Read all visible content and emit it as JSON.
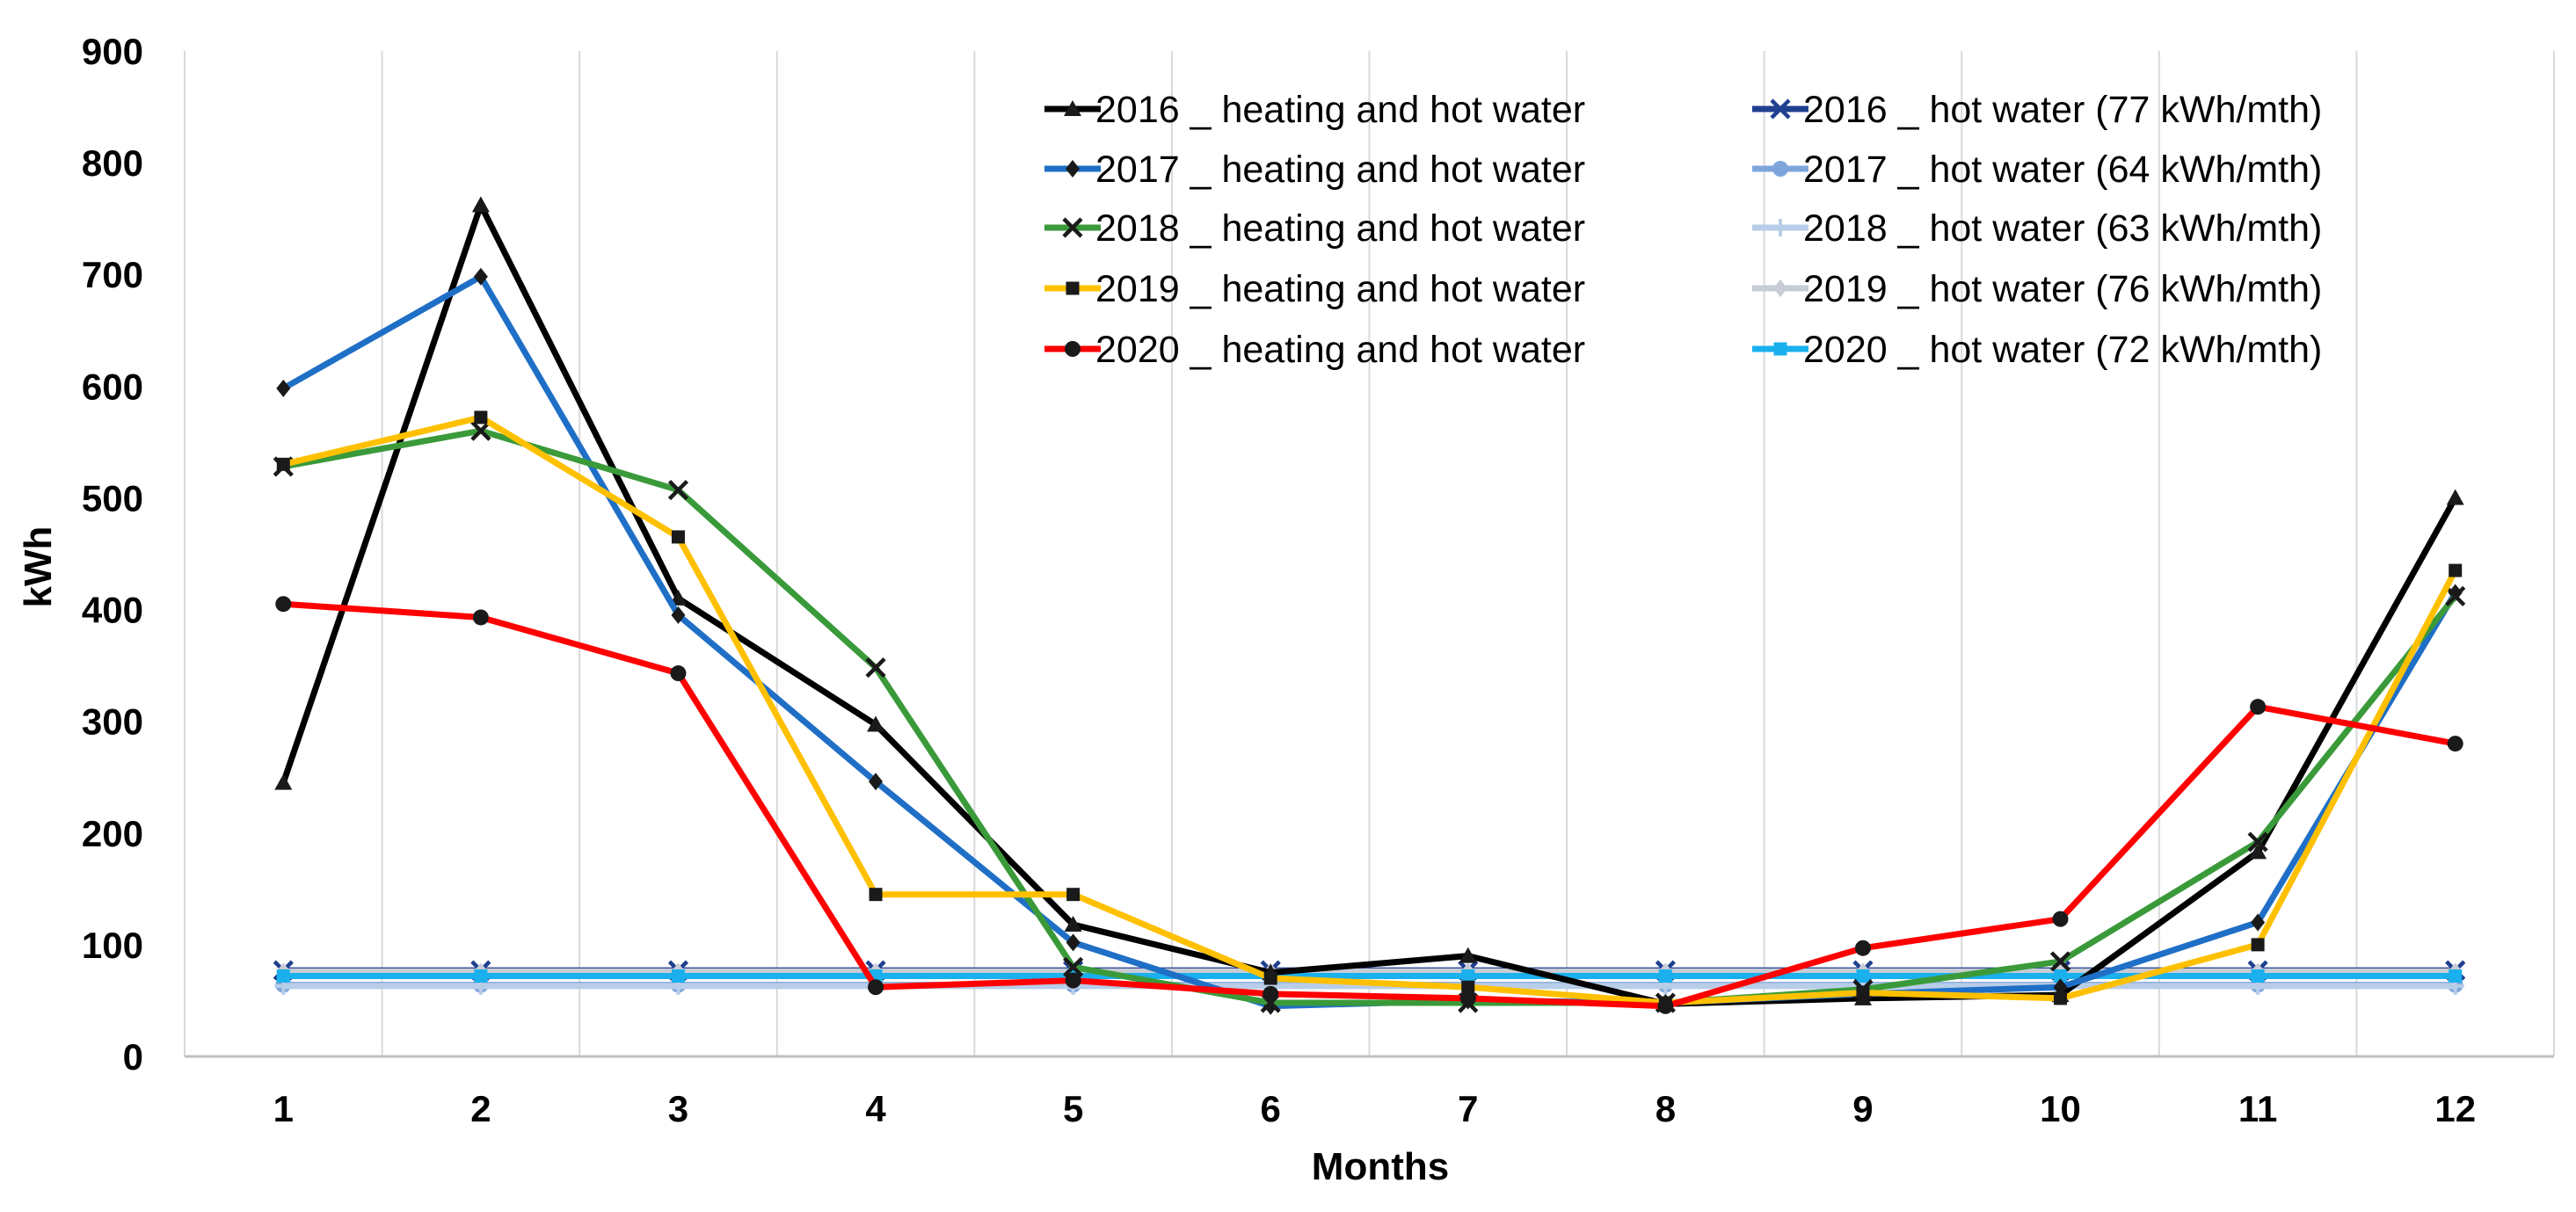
{
  "chart_data": {
    "type": "line",
    "xlabel": "Months",
    "ylabel": "kWh",
    "ylim": [
      0,
      900
    ],
    "yticks": [
      0,
      100,
      200,
      300,
      400,
      500,
      600,
      700,
      800,
      900
    ],
    "categories": [
      1,
      2,
      3,
      4,
      5,
      6,
      7,
      8,
      9,
      10,
      11,
      12
    ],
    "grid": "vertical",
    "legend_position": "top-right",
    "series": [
      {
        "name": "2016 _ heating and hot water",
        "color": "#000000",
        "marker": "triangle",
        "values": [
          245,
          762,
          410,
          297,
          118,
          75,
          90,
          47,
          52,
          55,
          183,
          500
        ]
      },
      {
        "name": "2017 _ heating and hot water",
        "color": "#1f6fc6",
        "marker": "diamond",
        "values": [
          598,
          698,
          395,
          246,
          102,
          45,
          50,
          48,
          56,
          62,
          120,
          415
        ]
      },
      {
        "name": "2018 _ heating and hot water",
        "color": "#3a9a3a",
        "marker": "x",
        "values": [
          528,
          560,
          507,
          348,
          80,
          48,
          48,
          48,
          60,
          85,
          192,
          412
        ]
      },
      {
        "name": "2019 _ heating and hot water",
        "color": "#ffc000",
        "marker": "square",
        "values": [
          530,
          572,
          465,
          145,
          145,
          70,
          62,
          48,
          57,
          52,
          100,
          435
        ]
      },
      {
        "name": "2020 _ heating and hot water",
        "color": "#ff0000",
        "marker": "circle",
        "values": [
          405,
          393,
          343,
          62,
          68,
          56,
          52,
          45,
          97,
          123,
          313,
          280
        ]
      },
      {
        "name": "2016 _ hot water (77 kWh/mth)",
        "color": "#1f3f8f",
        "marker": "x",
        "values": [
          77,
          77,
          77,
          77,
          77,
          77,
          77,
          77,
          77,
          77,
          77,
          77
        ]
      },
      {
        "name": "2017 _ hot water (64 kWh/mth)",
        "color": "#7fa6dc",
        "marker": "circle",
        "values": [
          64,
          64,
          64,
          64,
          64,
          64,
          64,
          64,
          64,
          64,
          64,
          64
        ]
      },
      {
        "name": "2018 _ hot water (63 kWh/mth)",
        "color": "#b8cde8",
        "marker": "plus",
        "values": [
          63,
          63,
          63,
          63,
          63,
          63,
          63,
          63,
          63,
          63,
          63,
          63
        ]
      },
      {
        "name": "2019 _ hot water (76 kWh/mth)",
        "color": "#c8ccd4",
        "marker": "diamond",
        "values": [
          76,
          76,
          76,
          76,
          76,
          76,
          76,
          76,
          76,
          76,
          76,
          76
        ]
      },
      {
        "name": "2020 _ hot water (72 kWh/mth)",
        "color": "#1ab0ee",
        "marker": "square",
        "values": [
          72,
          72,
          72,
          72,
          72,
          72,
          72,
          72,
          72,
          72,
          72,
          72
        ]
      }
    ]
  }
}
